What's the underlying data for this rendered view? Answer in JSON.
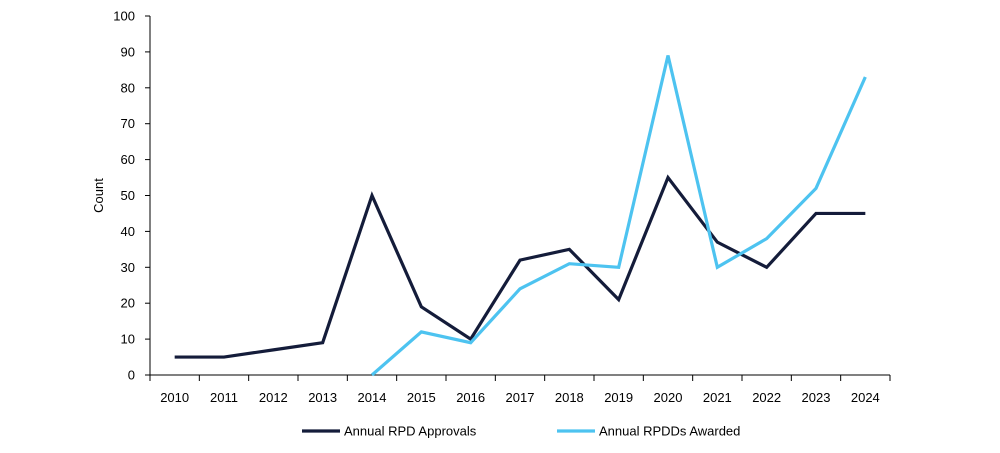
{
  "chart_data": {
    "type": "line",
    "title": "",
    "xlabel": "",
    "ylabel": "Count",
    "ylim": [
      0,
      100
    ],
    "yticks": [
      0,
      10,
      20,
      30,
      40,
      50,
      60,
      70,
      80,
      90,
      100
    ],
    "grid": false,
    "legend_position": "bottom",
    "categories": [
      "2010",
      "2011",
      "2012",
      "2013",
      "2014",
      "2015",
      "2016",
      "2017",
      "2018",
      "2019",
      "2020",
      "2021",
      "2022",
      "2023",
      "2024"
    ],
    "series": [
      {
        "name": "Annual RPD Approvals",
        "color": "#141C3A",
        "values": [
          5,
          5,
          7,
          9,
          50,
          19,
          10,
          32,
          35,
          21,
          55,
          37,
          30,
          45,
          45
        ]
      },
      {
        "name": "Annual RPDDs Awarded",
        "color": "#4DC3F0",
        "values": [
          null,
          null,
          null,
          null,
          0,
          12,
          9,
          24,
          31,
          30,
          89,
          30,
          38,
          52,
          83
        ]
      }
    ]
  }
}
